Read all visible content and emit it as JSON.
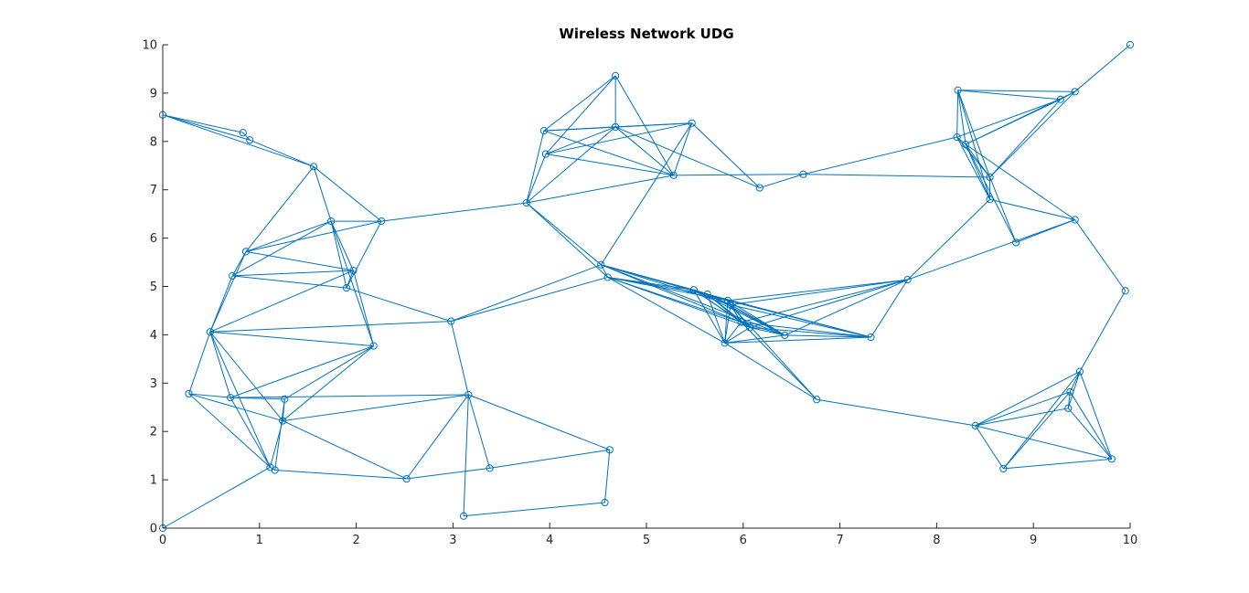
{
  "chart_data": {
    "type": "scatter",
    "title": "Wireless Network UDG",
    "xlabel": "",
    "ylabel": "",
    "xlim": [
      0,
      10
    ],
    "ylim": [
      0,
      10
    ],
    "xticks": [
      0,
      1,
      2,
      3,
      4,
      5,
      6,
      7,
      8,
      9,
      10
    ],
    "yticks": [
      0,
      1,
      2,
      3,
      4,
      5,
      6,
      7,
      8,
      9,
      10
    ],
    "xtick_labels": [
      "0",
      "1",
      "2",
      "3",
      "4",
      "5",
      "6",
      "7",
      "8",
      "9",
      "10"
    ],
    "ytick_labels": [
      "0",
      "1",
      "2",
      "3",
      "4",
      "5",
      "6",
      "7",
      "8",
      "9",
      "10"
    ],
    "grid": false,
    "legend": "none",
    "color": "#0072BD",
    "marker": "circle",
    "nodes": [
      [
        0.0,
        8.55
      ],
      [
        0.83,
        8.18
      ],
      [
        0.9,
        8.03
      ],
      [
        1.56,
        7.48
      ],
      [
        1.74,
        6.35
      ],
      [
        2.26,
        6.35
      ],
      [
        0.86,
        5.72
      ],
      [
        0.72,
        5.22
      ],
      [
        1.97,
        5.33
      ],
      [
        1.9,
        4.97
      ],
      [
        0.49,
        4.06
      ],
      [
        2.18,
        3.77
      ],
      [
        2.98,
        4.28
      ],
      [
        0.27,
        2.78
      ],
      [
        0.7,
        2.7
      ],
      [
        1.26,
        2.67
      ],
      [
        1.24,
        2.22
      ],
      [
        1.11,
        1.26
      ],
      [
        1.16,
        1.2
      ],
      [
        0.0,
        0.0
      ],
      [
        2.52,
        1.02
      ],
      [
        3.16,
        2.76
      ],
      [
        3.38,
        1.24
      ],
      [
        3.11,
        0.25
      ],
      [
        4.62,
        1.62
      ],
      [
        4.57,
        0.53
      ],
      [
        3.76,
        6.73
      ],
      [
        4.68,
        9.36
      ],
      [
        3.94,
        8.22
      ],
      [
        3.96,
        7.74
      ],
      [
        4.68,
        8.3
      ],
      [
        5.47,
        8.38
      ],
      [
        5.28,
        7.3
      ],
      [
        6.17,
        7.04
      ],
      [
        6.62,
        7.32
      ],
      [
        4.53,
        5.45
      ],
      [
        4.6,
        5.19
      ],
      [
        5.49,
        4.93
      ],
      [
        5.63,
        4.84
      ],
      [
        5.84,
        4.71
      ],
      [
        5.87,
        4.62
      ],
      [
        5.81,
        3.83
      ],
      [
        5.98,
        4.26
      ],
      [
        6.07,
        4.15
      ],
      [
        6.43,
        3.99
      ],
      [
        7.32,
        3.95
      ],
      [
        7.7,
        5.14
      ],
      [
        6.76,
        2.66
      ],
      [
        8.22,
        9.06
      ],
      [
        9.28,
        8.87
      ],
      [
        9.43,
        9.03
      ],
      [
        10.0,
        10.0
      ],
      [
        8.21,
        8.09
      ],
      [
        8.3,
        7.94
      ],
      [
        8.55,
        7.26
      ],
      [
        8.55,
        6.8
      ],
      [
        9.43,
        6.38
      ],
      [
        8.82,
        5.91
      ],
      [
        9.95,
        4.91
      ],
      [
        9.48,
        3.24
      ],
      [
        9.38,
        2.82
      ],
      [
        9.36,
        2.48
      ],
      [
        8.4,
        2.12
      ],
      [
        8.69,
        1.23
      ],
      [
        9.81,
        1.43
      ]
    ],
    "edges": [
      [
        0,
        1
      ],
      [
        0,
        2
      ],
      [
        0,
        3
      ],
      [
        1,
        2
      ],
      [
        2,
        3
      ],
      [
        3,
        4
      ],
      [
        3,
        5
      ],
      [
        3,
        6
      ],
      [
        4,
        5
      ],
      [
        4,
        6
      ],
      [
        4,
        7
      ],
      [
        4,
        8
      ],
      [
        4,
        9
      ],
      [
        4,
        11
      ],
      [
        5,
        6
      ],
      [
        5,
        9
      ],
      [
        5,
        26
      ],
      [
        6,
        7
      ],
      [
        6,
        8
      ],
      [
        6,
        10
      ],
      [
        7,
        8
      ],
      [
        7,
        9
      ],
      [
        7,
        10
      ],
      [
        8,
        9
      ],
      [
        8,
        10
      ],
      [
        8,
        11
      ],
      [
        9,
        12
      ],
      [
        10,
        11
      ],
      [
        10,
        12
      ],
      [
        10,
        13
      ],
      [
        10,
        14
      ],
      [
        10,
        16
      ],
      [
        10,
        17
      ],
      [
        11,
        14
      ],
      [
        11,
        15
      ],
      [
        11,
        16
      ],
      [
        12,
        21
      ],
      [
        12,
        35
      ],
      [
        13,
        14
      ],
      [
        13,
        16
      ],
      [
        13,
        17
      ],
      [
        14,
        15
      ],
      [
        14,
        17
      ],
      [
        14,
        21
      ],
      [
        15,
        16
      ],
      [
        15,
        18
      ],
      [
        16,
        17
      ],
      [
        16,
        20
      ],
      [
        16,
        21
      ],
      [
        17,
        18
      ],
      [
        17,
        19
      ],
      [
        18,
        20
      ],
      [
        20,
        21
      ],
      [
        20,
        22
      ],
      [
        21,
        22
      ],
      [
        21,
        23
      ],
      [
        21,
        24
      ],
      [
        22,
        24
      ],
      [
        23,
        25
      ],
      [
        24,
        25
      ],
      [
        12,
        36
      ],
      [
        26,
        28
      ],
      [
        26,
        29
      ],
      [
        26,
        30
      ],
      [
        26,
        32
      ],
      [
        26,
        35
      ],
      [
        26,
        36
      ],
      [
        27,
        28
      ],
      [
        27,
        30
      ],
      [
        27,
        32
      ],
      [
        27,
        29
      ],
      [
        28,
        30
      ],
      [
        28,
        31
      ],
      [
        28,
        32
      ],
      [
        29,
        30
      ],
      [
        29,
        31
      ],
      [
        29,
        32
      ],
      [
        30,
        31
      ],
      [
        30,
        32
      ],
      [
        30,
        33
      ],
      [
        31,
        32
      ],
      [
        31,
        33
      ],
      [
        31,
        35
      ],
      [
        32,
        34
      ],
      [
        33,
        34
      ],
      [
        34,
        52
      ],
      [
        34,
        54
      ],
      [
        35,
        36
      ],
      [
        35,
        37
      ],
      [
        35,
        38
      ],
      [
        35,
        39
      ],
      [
        35,
        40
      ],
      [
        35,
        42
      ],
      [
        35,
        44
      ],
      [
        36,
        37
      ],
      [
        36,
        38
      ],
      [
        36,
        39
      ],
      [
        36,
        41
      ],
      [
        36,
        42
      ],
      [
        36,
        43
      ],
      [
        37,
        38
      ],
      [
        37,
        39
      ],
      [
        37,
        40
      ],
      [
        37,
        41
      ],
      [
        37,
        42
      ],
      [
        37,
        43
      ],
      [
        37,
        44
      ],
      [
        38,
        39
      ],
      [
        38,
        40
      ],
      [
        38,
        41
      ],
      [
        38,
        42
      ],
      [
        38,
        43
      ],
      [
        38,
        44
      ],
      [
        38,
        45
      ],
      [
        39,
        40
      ],
      [
        39,
        41
      ],
      [
        39,
        42
      ],
      [
        39,
        43
      ],
      [
        39,
        44
      ],
      [
        39,
        45
      ],
      [
        39,
        46
      ],
      [
        40,
        41
      ],
      [
        40,
        42
      ],
      [
        40,
        43
      ],
      [
        40,
        44
      ],
      [
        40,
        45
      ],
      [
        40,
        46
      ],
      [
        40,
        47
      ],
      [
        41,
        42
      ],
      [
        41,
        43
      ],
      [
        41,
        44
      ],
      [
        41,
        45
      ],
      [
        41,
        47
      ],
      [
        42,
        43
      ],
      [
        42,
        44
      ],
      [
        42,
        45
      ],
      [
        42,
        46
      ],
      [
        42,
        47
      ],
      [
        43,
        44
      ],
      [
        43,
        45
      ],
      [
        43,
        46
      ],
      [
        44,
        45
      ],
      [
        44,
        46
      ],
      [
        45,
        46
      ],
      [
        46,
        55
      ],
      [
        46,
        56
      ],
      [
        47,
        62
      ],
      [
        48,
        49
      ],
      [
        48,
        50
      ],
      [
        48,
        52
      ],
      [
        48,
        53
      ],
      [
        48,
        54
      ],
      [
        48,
        55
      ],
      [
        49,
        50
      ],
      [
        49,
        52
      ],
      [
        49,
        53
      ],
      [
        49,
        54
      ],
      [
        50,
        51
      ],
      [
        50,
        53
      ],
      [
        50,
        54
      ],
      [
        52,
        53
      ],
      [
        52,
        54
      ],
      [
        52,
        55
      ],
      [
        53,
        54
      ],
      [
        53,
        55
      ],
      [
        53,
        56
      ],
      [
        53,
        57
      ],
      [
        54,
        55
      ],
      [
        54,
        57
      ],
      [
        55,
        56
      ],
      [
        56,
        57
      ],
      [
        56,
        58
      ],
      [
        58,
        59
      ],
      [
        59,
        60
      ],
      [
        59,
        61
      ],
      [
        59,
        62
      ],
      [
        59,
        63
      ],
      [
        59,
        64
      ],
      [
        60,
        61
      ],
      [
        60,
        62
      ],
      [
        60,
        63
      ],
      [
        60,
        64
      ],
      [
        61,
        62
      ],
      [
        61,
        64
      ],
      [
        62,
        63
      ],
      [
        62,
        64
      ],
      [
        63,
        64
      ]
    ]
  }
}
